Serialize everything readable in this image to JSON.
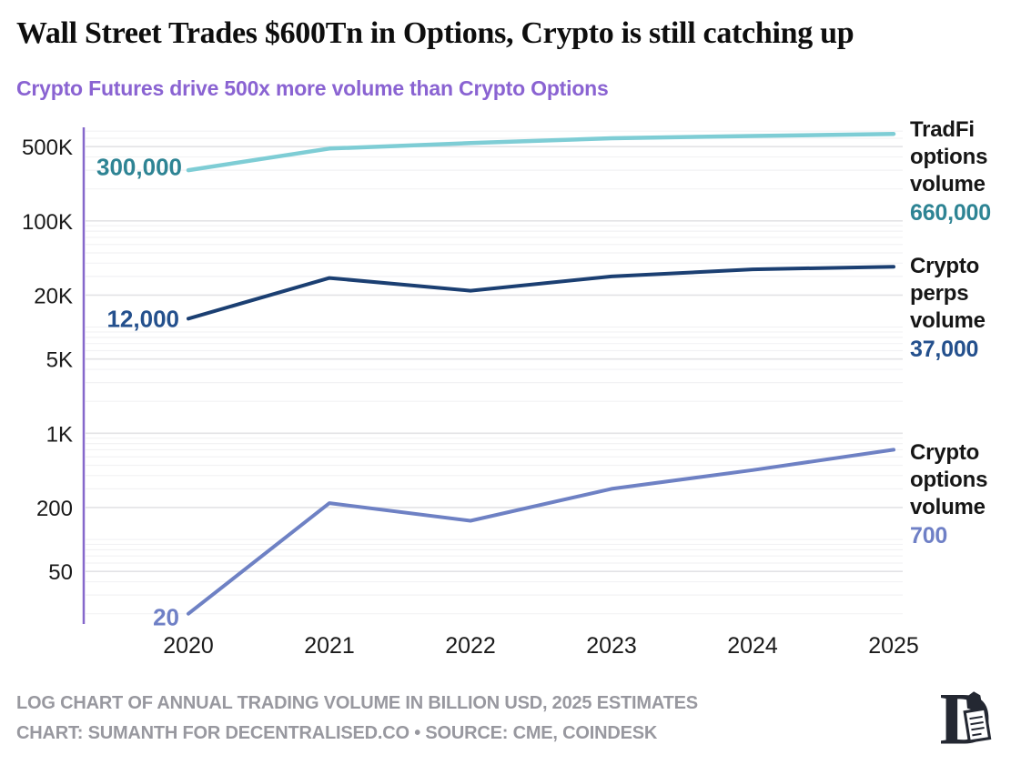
{
  "title": "Wall Street Trades $600Tn in Options, Crypto is still catching up",
  "subtitle": "Crypto Futures drive 500x more volume than Crypto Options",
  "colors": {
    "subtitle": "#8a63d2",
    "axis_line": "#8668cb",
    "grid_major": "#e3e3e6",
    "grid_minor": "#f2f2f4",
    "tick_text": "#1a1a1a",
    "footer_text": "#98989f",
    "logo": "#242832"
  },
  "chart_data": {
    "type": "line",
    "log_scale": true,
    "grid": true,
    "legend_position": "right",
    "x_labels": [
      "2020",
      "2021",
      "2022",
      "2023",
      "2024",
      "2025"
    ],
    "x": [
      2020,
      2021,
      2022,
      2023,
      2024,
      2025
    ],
    "ylim": [
      16,
      760000
    ],
    "y_ticks": [
      {
        "label": "500K",
        "value": 500000
      },
      {
        "label": "100K",
        "value": 100000
      },
      {
        "label": "20K",
        "value": 20000
      },
      {
        "label": "5K",
        "value": 5000
      },
      {
        "label": "1K",
        "value": 1000
      },
      {
        "label": "200",
        "value": 200
      },
      {
        "label": "50",
        "value": 50
      }
    ],
    "series": [
      {
        "name": "TradFi options volume",
        "color": "#7ecdd5",
        "label_color": "#2e8494",
        "stroke_width": 4.5,
        "values": [
          300000,
          480000,
          540000,
          600000,
          630000,
          660000
        ],
        "start_label": "300,000",
        "end_label": "660,000"
      },
      {
        "name": "Crypto perps volume",
        "color": "#1b3f72",
        "label_color": "#24508d",
        "stroke_width": 4,
        "values": [
          12000,
          29000,
          22000,
          30000,
          35000,
          37000
        ],
        "start_label": "12,000",
        "end_label": "37,000"
      },
      {
        "name": "Crypto options volume",
        "color": "#6e81c4",
        "label_color": "#6f80c6",
        "stroke_width": 4,
        "values": [
          20,
          220,
          150,
          300,
          450,
          700
        ],
        "start_label": "20",
        "end_label": "700"
      }
    ]
  },
  "start_labels": {
    "tradfi": "300,000",
    "perps": "12,000",
    "options": "20"
  },
  "legend": [
    {
      "name": "TradFi options volume",
      "value": "660,000",
      "value_color": "#2e8494"
    },
    {
      "name": "Crypto perps volume",
      "value": "37,000",
      "value_color": "#24508d"
    },
    {
      "name": "Crypto options volume",
      "value": "700",
      "value_color": "#6f80c6"
    }
  ],
  "footer": {
    "line1": "LOG CHART OF ANNUAL TRADING VOLUME IN BILLION USD, 2025 ESTIMATES",
    "line2": "CHART: SUMANTH FOR DECENTRALISED.CO • SOURCE: CME, COINDESK"
  }
}
